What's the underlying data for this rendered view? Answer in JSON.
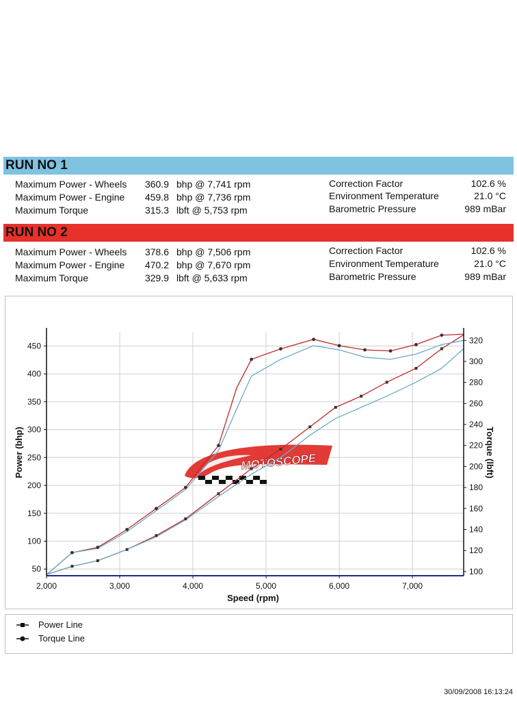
{
  "runs": [
    {
      "title": "RUN NO 1",
      "max_power_wheels": {
        "label": "Maximum Power - Wheels",
        "value": "360.9",
        "detail": "bhp @ 7,741 rpm"
      },
      "max_power_engine": {
        "label": "Maximum Power - Engine",
        "value": "459.8",
        "detail": "bhp @ 7,736 rpm"
      },
      "max_torque": {
        "label": "Maximum Torque",
        "value": "315.3",
        "detail": "lbft @ 5,753 rpm"
      },
      "correction_factor": {
        "label": "Correction Factor",
        "value": "102.6 %"
      },
      "env_temp": {
        "label": "Environment Temperature",
        "value": "21.0 °C"
      },
      "baro": {
        "label": "Barometric Pressure",
        "value": "989 mBar"
      }
    },
    {
      "title": "RUN NO 2",
      "max_power_wheels": {
        "label": "Maximum Power - Wheels",
        "value": "378.6",
        "detail": "bhp @ 7,506 rpm"
      },
      "max_power_engine": {
        "label": "Maximum Power - Engine",
        "value": "470.2",
        "detail": "bhp @ 7,670 rpm"
      },
      "max_torque": {
        "label": "Maximum Torque",
        "value": "329.9",
        "detail": "lbft @ 5,633 rpm"
      },
      "correction_factor": {
        "label": "Correction Factor",
        "value": "102.6 %"
      },
      "env_temp": {
        "label": "Environment Temperature",
        "value": "21.0 °C"
      },
      "baro": {
        "label": "Barometric Pressure",
        "value": "989 mBar"
      }
    }
  ],
  "chart_data": {
    "type": "line",
    "xlabel": "Speed (rpm)",
    "ylabel_left": "Power (bhp)",
    "ylabel_right": "Torque (lbft)",
    "xlim": [
      2000,
      7700
    ],
    "ylim_left": [
      38,
      475
    ],
    "ylim_right": [
      96,
      328
    ],
    "x_ticks": [
      2000,
      3000,
      4000,
      5000,
      6000,
      7000
    ],
    "x_tick_labels": [
      "2,000",
      "3,000",
      "4,000",
      "5,000",
      "6,000",
      "7,000"
    ],
    "y_ticks_left": [
      50,
      100,
      150,
      200,
      250,
      300,
      350,
      400,
      450
    ],
    "y_ticks_right": [
      100,
      120,
      140,
      160,
      180,
      200,
      220,
      240,
      260,
      280,
      300,
      320
    ],
    "grid": true,
    "series": [
      {
        "name": "Run 2 Power",
        "axis": "left",
        "color": "#c0282a",
        "x": [
          2000,
          2350,
          2700,
          3100,
          3500,
          3900,
          4350,
          4800,
          5200,
          5600,
          5950,
          6300,
          6650,
          7050,
          7400,
          7700
        ],
        "y": [
          40,
          55,
          65,
          85,
          110,
          140,
          185,
          230,
          265,
          305,
          340,
          360,
          385,
          410,
          445,
          470
        ]
      },
      {
        "name": "Run 1 Power",
        "axis": "left",
        "color": "#6aa9c9",
        "x": [
          2000,
          2350,
          2700,
          3100,
          3500,
          3900,
          4350,
          4800,
          5200,
          5600,
          5950,
          6300,
          6650,
          7050,
          7400,
          7700
        ],
        "y": [
          40,
          55,
          65,
          85,
          108,
          138,
          180,
          220,
          250,
          290,
          320,
          340,
          360,
          385,
          410,
          445
        ]
      },
      {
        "name": "Run 2 Torque",
        "axis": "right",
        "color": "#c0282a",
        "x": [
          2000,
          2350,
          2700,
          3100,
          3500,
          3900,
          4350,
          4600,
          4800,
          5200,
          5650,
          6000,
          6350,
          6700,
          7050,
          7400,
          7700
        ],
        "y": [
          97,
          118,
          123,
          140,
          160,
          180,
          220,
          275,
          302,
          312,
          321,
          315,
          311,
          310,
          316,
          325,
          326
        ]
      },
      {
        "name": "Run 1 Torque",
        "axis": "right",
        "color": "#6aa9c9",
        "x": [
          2000,
          2350,
          2700,
          3100,
          3500,
          3900,
          4350,
          4600,
          4800,
          5200,
          5650,
          6000,
          6350,
          6700,
          7050,
          7400,
          7700
        ],
        "y": [
          97,
          118,
          122,
          138,
          158,
          178,
          215,
          255,
          286,
          302,
          315,
          311,
          304,
          302,
          307,
          316,
          320
        ]
      }
    ],
    "markers": {
      "power": {
        "series": "Run 2 Power",
        "x": [
          2350,
          2700,
          3100,
          3500,
          3900,
          4350,
          4800,
          5200,
          5600,
          5950,
          6300,
          6650,
          7050,
          7400
        ],
        "y": [
          55,
          65,
          85,
          110,
          140,
          185,
          230,
          265,
          305,
          340,
          360,
          385,
          410,
          445
        ]
      },
      "torque": {
        "series": "Run 2 Torque",
        "x": [
          2350,
          2700,
          3100,
          3500,
          3900,
          4350,
          4800,
          5200,
          5650,
          6000,
          6350,
          6700,
          7050,
          7400
        ],
        "y": [
          118,
          123,
          140,
          160,
          180,
          220,
          302,
          312,
          321,
          315,
          311,
          310,
          316,
          325
        ]
      }
    },
    "legend": [
      {
        "label": "Power Line",
        "marker": "square"
      },
      {
        "label": "Torque Line",
        "marker": "circle"
      }
    ],
    "watermark": "MOTOSCOPE"
  },
  "timestamp": "30/09/2008 16:13:24"
}
